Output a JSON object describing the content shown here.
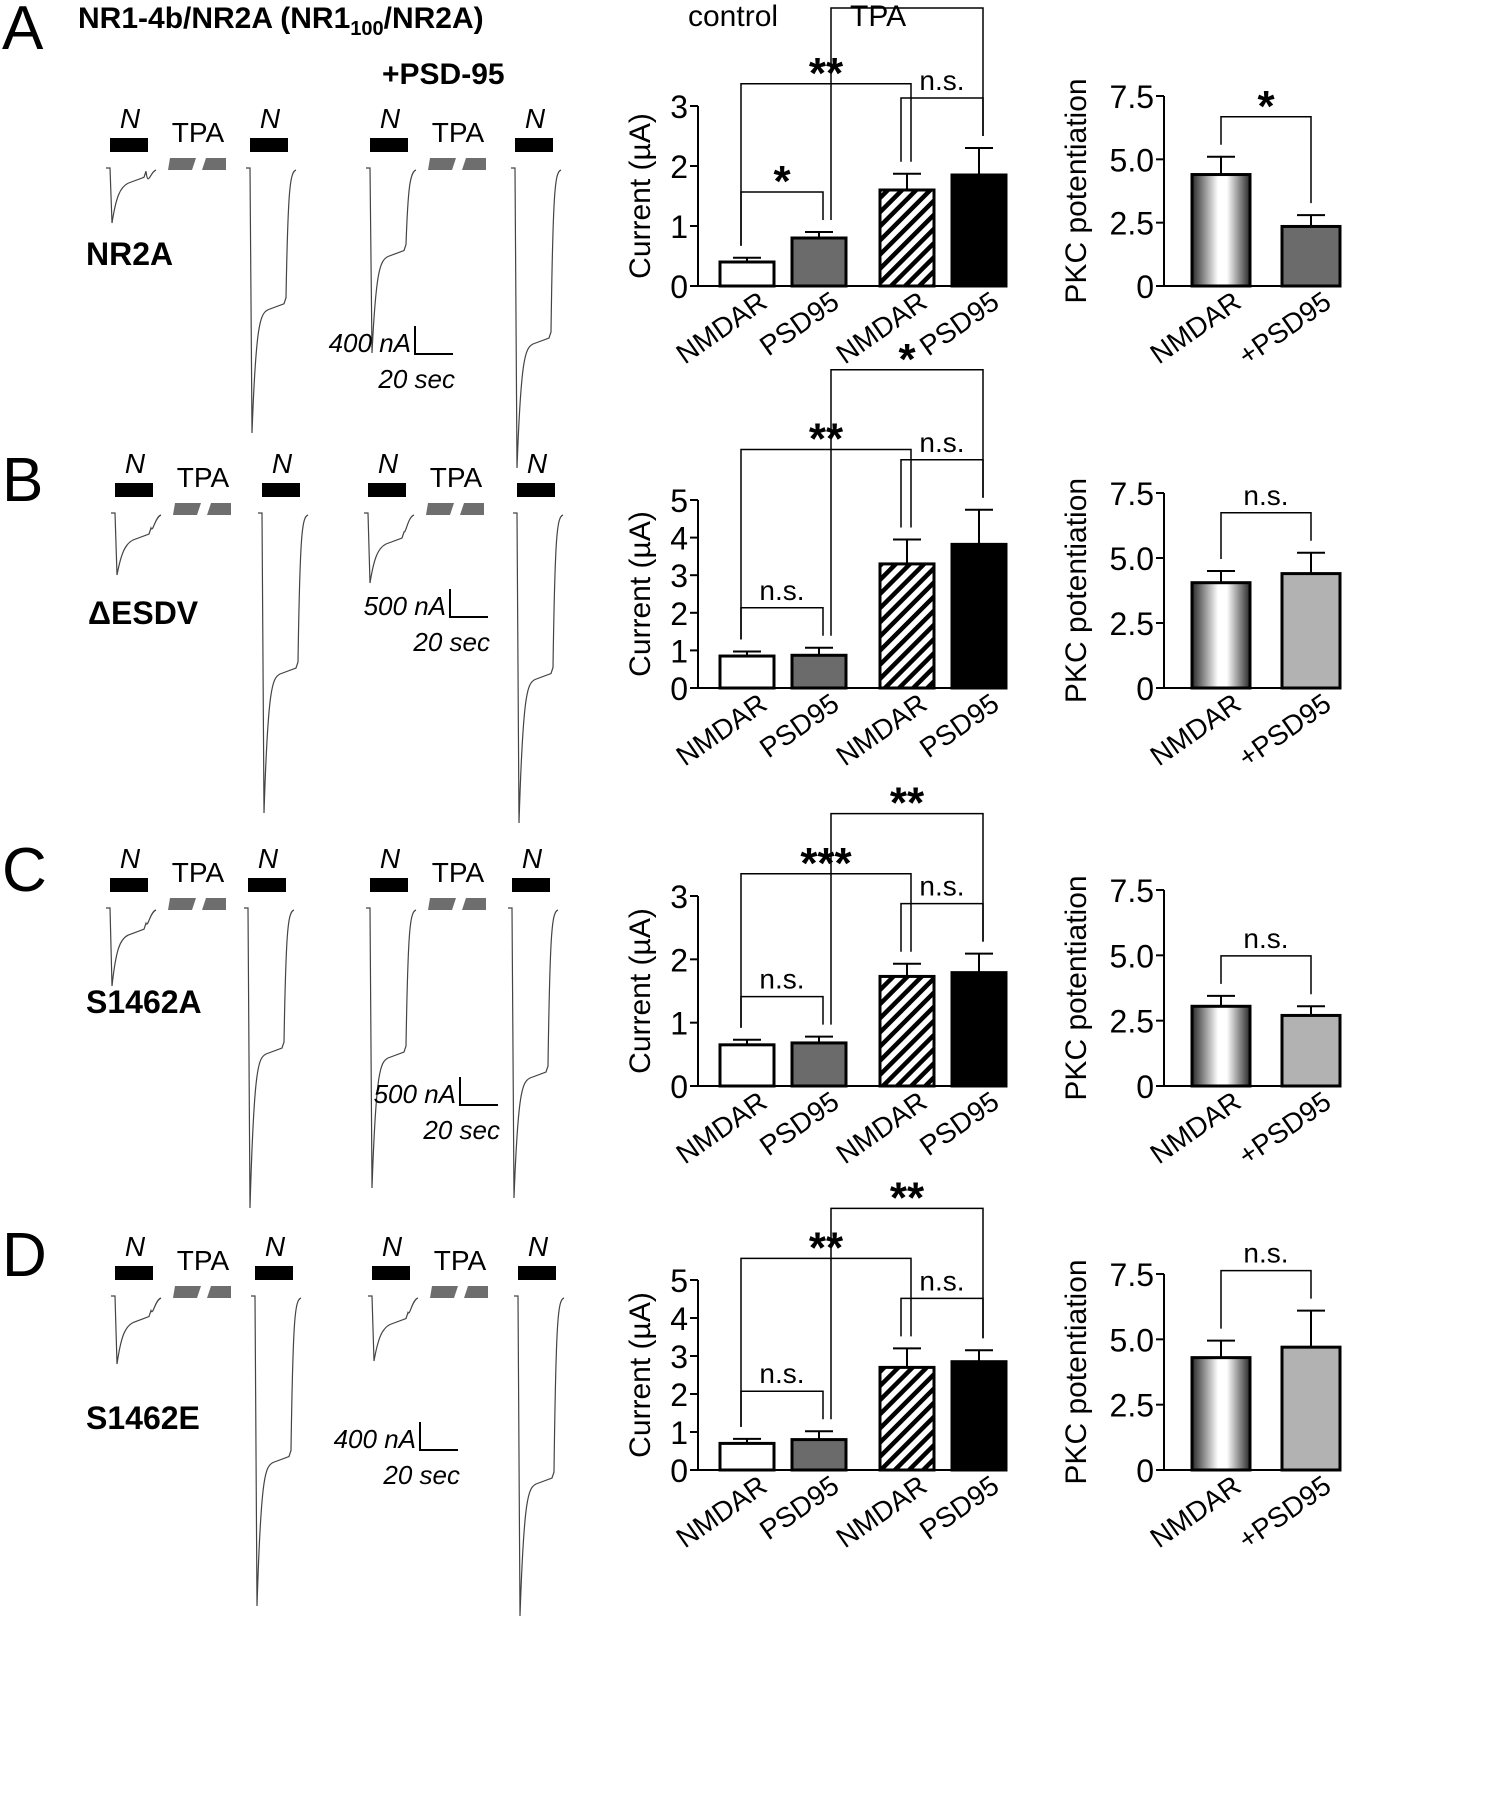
{
  "figure": {
    "title_main": "NR1-4b/NR2A (NR1",
    "title_sub": "100",
    "title_end": "/NR2A)",
    "psd_label": "+PSD-95",
    "condition_labels": [
      "control",
      "TPA"
    ],
    "trace_labels": {
      "agonist": "N",
      "drug": "TPA"
    }
  },
  "panels": [
    {
      "letter": "A",
      "construct": "NR2A",
      "scale_current": "400 nA",
      "scale_time": "20 sec"
    },
    {
      "letter": "B",
      "construct": "ΔESDV",
      "scale_current": "500 nA",
      "scale_time": "20 sec"
    },
    {
      "letter": "C",
      "construct": "S1462A",
      "scale_current": "500 nA",
      "scale_time": "20 sec"
    },
    {
      "letter": "D",
      "construct": "S1462E",
      "scale_current": "400 nA",
      "scale_time": "20 sec"
    }
  ],
  "chart_data": [
    {
      "panel": "A",
      "type": "bar",
      "ylabel": "Current (µA)",
      "ylim": [
        0,
        3
      ],
      "yticks": [
        "0",
        "1",
        "2",
        "3"
      ],
      "categories": [
        "NMDAR",
        "PSD95",
        "NMDAR",
        "PSD95"
      ],
      "groups": [
        "control",
        "control",
        "TPA",
        "TPA"
      ],
      "values": [
        0.4,
        0.8,
        1.6,
        1.85
      ],
      "errors": [
        0.07,
        0.1,
        0.27,
        0.45
      ],
      "significance": [
        {
          "pair": [
            0,
            1
          ],
          "label": "*"
        },
        {
          "pair": [
            0,
            2
          ],
          "label": "**"
        },
        {
          "pair": [
            2,
            3
          ],
          "label": "n.s."
        },
        {
          "pair": [
            1,
            3
          ],
          "label": "*"
        }
      ]
    },
    {
      "panel": "A",
      "type": "bar",
      "ylabel": "PKC potentiation",
      "ylim": [
        0,
        7.5
      ],
      "yticks": [
        "0",
        "2.5",
        "5.0",
        "7.5"
      ],
      "categories": [
        "NMDAR",
        "+PSD95"
      ],
      "values": [
        4.4,
        2.35
      ],
      "errors": [
        0.7,
        0.45
      ],
      "significance": [
        {
          "pair": [
            0,
            1
          ],
          "label": "*"
        }
      ]
    },
    {
      "panel": "B",
      "type": "bar",
      "ylabel": "Current (µA)",
      "ylim": [
        0,
        5
      ],
      "yticks": [
        "0",
        "1",
        "2",
        "3",
        "4",
        "5"
      ],
      "categories": [
        "NMDAR",
        "PSD95",
        "NMDAR",
        "PSD95"
      ],
      "groups": [
        "control",
        "control",
        "TPA",
        "TPA"
      ],
      "values": [
        0.85,
        0.87,
        3.3,
        3.82
      ],
      "errors": [
        0.12,
        0.2,
        0.65,
        0.92
      ],
      "significance": [
        {
          "pair": [
            0,
            1
          ],
          "label": "n.s."
        },
        {
          "pair": [
            0,
            2
          ],
          "label": "**"
        },
        {
          "pair": [
            2,
            3
          ],
          "label": "n.s."
        },
        {
          "pair": [
            1,
            3
          ],
          "label": "*"
        }
      ]
    },
    {
      "panel": "B",
      "type": "bar",
      "ylabel": "PKC potentiation",
      "ylim": [
        0,
        7.5
      ],
      "yticks": [
        "0",
        "2.5",
        "5.0",
        "7.5"
      ],
      "categories": [
        "NMDAR",
        "+PSD95"
      ],
      "values": [
        4.05,
        4.4
      ],
      "errors": [
        0.45,
        0.8
      ],
      "significance": [
        {
          "pair": [
            0,
            1
          ],
          "label": "n.s."
        }
      ]
    },
    {
      "panel": "C",
      "type": "bar",
      "ylabel": "Current (µA)",
      "ylim": [
        0,
        3
      ],
      "yticks": [
        "0",
        "1",
        "2",
        "3"
      ],
      "categories": [
        "NMDAR",
        "PSD95",
        "NMDAR",
        "PSD95"
      ],
      "groups": [
        "control",
        "control",
        "TPA",
        "TPA"
      ],
      "values": [
        0.65,
        0.68,
        1.73,
        1.79
      ],
      "errors": [
        0.08,
        0.1,
        0.2,
        0.3
      ],
      "significance": [
        {
          "pair": [
            0,
            1
          ],
          "label": "n.s."
        },
        {
          "pair": [
            0,
            2
          ],
          "label": "***"
        },
        {
          "pair": [
            2,
            3
          ],
          "label": "n.s."
        },
        {
          "pair": [
            1,
            3
          ],
          "label": "**"
        }
      ]
    },
    {
      "panel": "C",
      "type": "bar",
      "ylabel": "PKC potentiation",
      "ylim": [
        0,
        7.5
      ],
      "yticks": [
        "0",
        "2.5",
        "5.0",
        "7.5"
      ],
      "categories": [
        "NMDAR",
        "+PSD95"
      ],
      "values": [
        3.05,
        2.7
      ],
      "errors": [
        0.4,
        0.35
      ],
      "significance": [
        {
          "pair": [
            0,
            1
          ],
          "label": "n.s."
        }
      ]
    },
    {
      "panel": "D",
      "type": "bar",
      "ylabel": "Current (µA)",
      "ylim": [
        0,
        5
      ],
      "yticks": [
        "0",
        "1",
        "2",
        "3",
        "4",
        "5"
      ],
      "categories": [
        "NMDAR",
        "PSD95",
        "NMDAR",
        "PSD95"
      ],
      "groups": [
        "control",
        "control",
        "TPA",
        "TPA"
      ],
      "values": [
        0.7,
        0.8,
        2.7,
        2.85
      ],
      "errors": [
        0.12,
        0.22,
        0.5,
        0.3
      ],
      "significance": [
        {
          "pair": [
            0,
            1
          ],
          "label": "n.s."
        },
        {
          "pair": [
            0,
            2
          ],
          "label": "**"
        },
        {
          "pair": [
            2,
            3
          ],
          "label": "n.s."
        },
        {
          "pair": [
            1,
            3
          ],
          "label": "**"
        }
      ]
    },
    {
      "panel": "D",
      "type": "bar",
      "ylabel": "PKC potentiation",
      "ylim": [
        0,
        7.5
      ],
      "yticks": [
        "0",
        "2.5",
        "5.0",
        "7.5"
      ],
      "categories": [
        "NMDAR",
        "+PSD95"
      ],
      "values": [
        4.3,
        4.7
      ],
      "errors": [
        0.65,
        1.4
      ],
      "significance": [
        {
          "pair": [
            0,
            1
          ],
          "label": "n.s."
        }
      ]
    }
  ]
}
